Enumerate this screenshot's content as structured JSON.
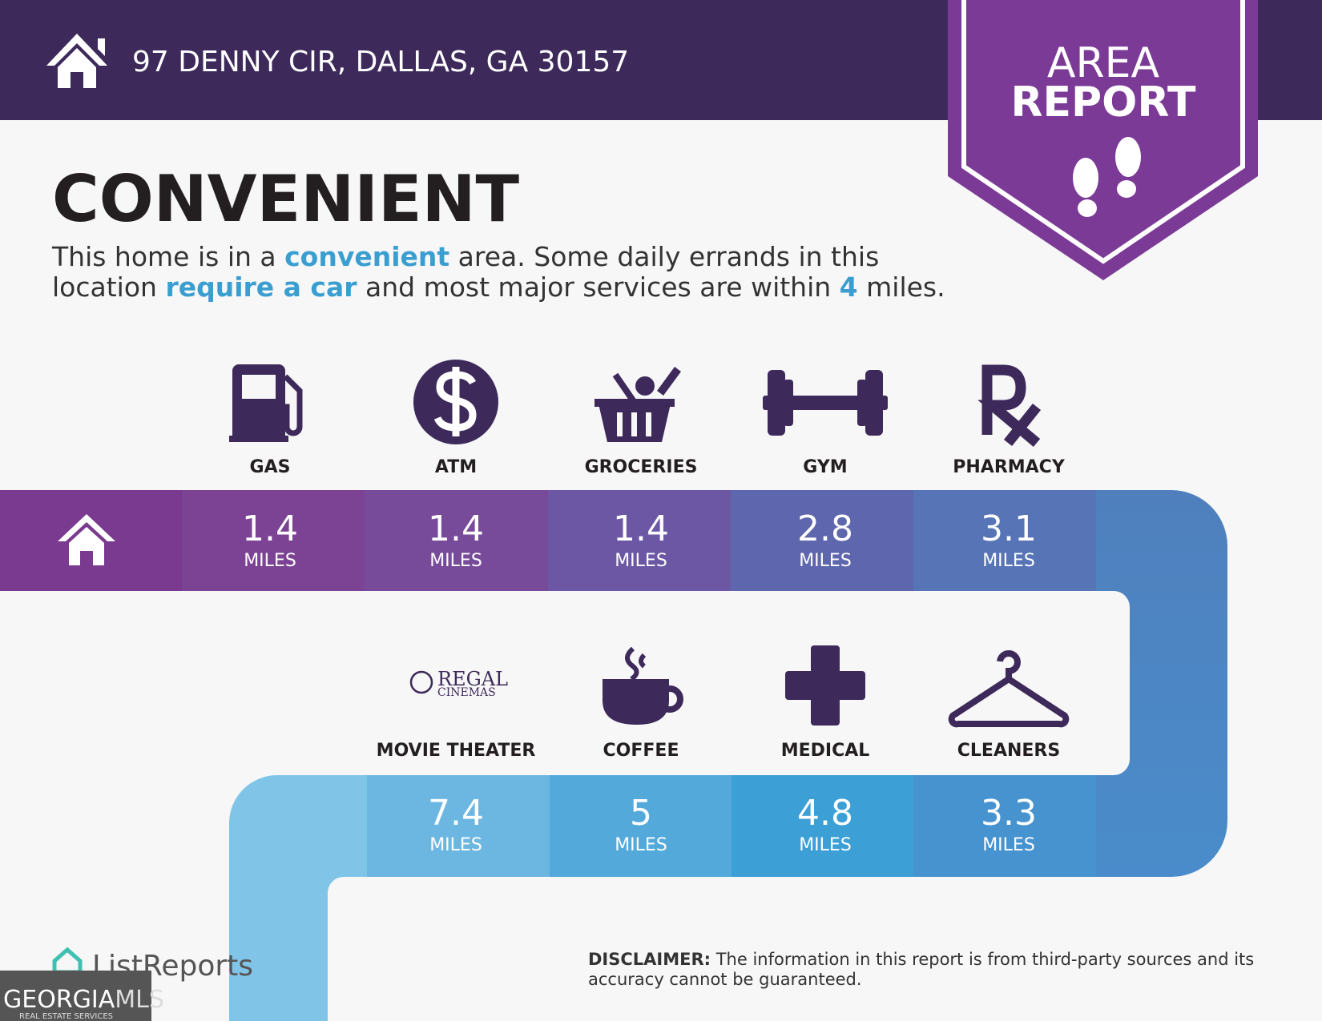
{
  "header": {
    "address": "97 DENNY CIR, DALLAS, GA 30157"
  },
  "badge": {
    "lines": [
      "AREA",
      "REPORT"
    ]
  },
  "heading": "CONVENIENT",
  "description": {
    "lines": [
      [
        "This home is in a ",
        "convenient",
        " area. Some daily errands in this"
      ],
      [
        "location ",
        "require a car",
        " and most major services are within ",
        "4",
        " miles."
      ]
    ]
  },
  "amenities": [
    {
      "label": "GAS",
      "distance": "1.4",
      "unit": "MILES"
    },
    {
      "label": "ATM",
      "distance": "1.4",
      "unit": "MILES"
    },
    {
      "label": "GROCERIES",
      "distance": "1.4",
      "unit": "MILES"
    },
    {
      "label": "GYM",
      "distance": "2.8",
      "unit": "MILES"
    },
    {
      "label": "PHARMACY",
      "distance": "3.1",
      "unit": "MILES"
    },
    {
      "label": "MOVIE THEATER",
      "distance": "7.4",
      "unit": "MILES"
    },
    {
      "label": "COFFEE",
      "distance": "5",
      "unit": "MILES"
    },
    {
      "label": "MEDICAL",
      "distance": "4.8",
      "unit": "MILES"
    },
    {
      "label": "CLEANERS",
      "distance": "3.3",
      "unit": "MILES"
    }
  ],
  "movie_logo": {
    "name": "REGAL",
    "sub": "CINEMAS"
  },
  "footer": {
    "brand": "ListReports",
    "mls_a": "GEORGIA",
    "mls_b": "MLS",
    "mls_sub": "REAL ESTATE SERVICES",
    "disclaimer_label": "DISCLAIMER:",
    "disclaimer_lines": [
      " The information in this report is from third-party sources and its",
      "accuracy cannot be guaranteed."
    ]
  }
}
